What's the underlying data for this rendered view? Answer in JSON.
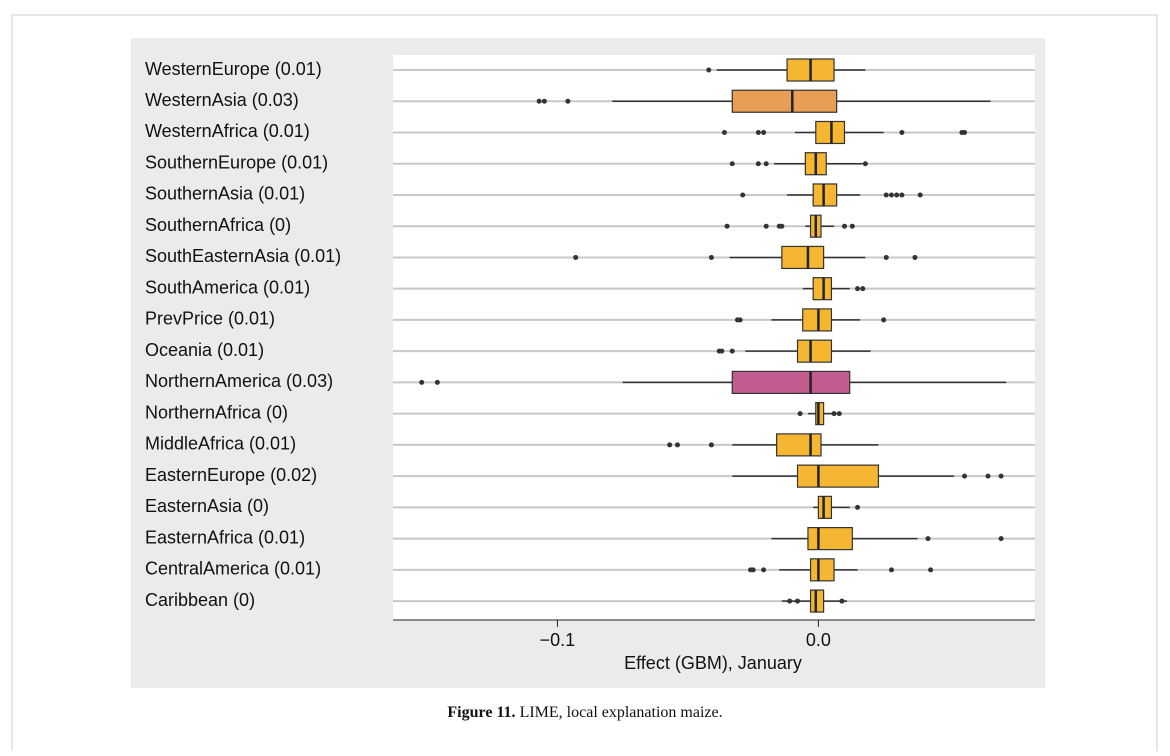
{
  "chart_data": {
    "type": "box",
    "categories": [
      "WesternEurope (0.01)",
      "WesternAsia (0.03)",
      "WesternAfrica (0.01)",
      "SouthernEurope (0.01)",
      "SouthernAsia (0.01)",
      "SouthernAfrica (0)",
      "SouthEasternAsia (0.01)",
      "SouthAmerica (0.01)",
      "PrevPrice (0.01)",
      "Oceania (0.01)",
      "NorthernAmerica (0.03)",
      "NorthernAfrica (0)",
      "MiddleAfrica (0.01)",
      "EasternEurope (0.02)",
      "EasternAsia (0)",
      "EasternAfrica (0.01)",
      "CentralAmerica (0.01)",
      "Caribbean (0)"
    ],
    "whisker_low": [
      -0.039,
      -0.079,
      -0.009,
      -0.017,
      -0.012,
      -0.005,
      -0.034,
      -0.006,
      -0.018,
      -0.028,
      -0.075,
      -0.004,
      -0.033,
      -0.033,
      -0.002,
      -0.018,
      -0.015,
      -0.014
    ],
    "q1": [
      -0.012,
      -0.033,
      -0.001,
      -0.005,
      -0.002,
      -0.003,
      -0.014,
      -0.002,
      -0.006,
      -0.008,
      -0.033,
      -0.001,
      -0.016,
      -0.008,
      0.0,
      -0.004,
      -0.003,
      -0.003
    ],
    "median": [
      -0.003,
      -0.01,
      0.005,
      -0.001,
      0.002,
      -0.001,
      -0.004,
      0.002,
      0.0,
      -0.003,
      -0.003,
      0.0,
      -0.003,
      0.0,
      0.002,
      0.0,
      0.0,
      -0.001
    ],
    "q3": [
      0.006,
      0.007,
      0.01,
      0.003,
      0.007,
      0.001,
      0.002,
      0.005,
      0.005,
      0.005,
      0.012,
      0.002,
      0.001,
      0.023,
      0.005,
      0.013,
      0.006,
      0.002
    ],
    "whisker_high": [
      0.018,
      0.066,
      0.025,
      0.017,
      0.016,
      0.006,
      0.018,
      0.012,
      0.016,
      0.02,
      0.072,
      0.007,
      0.023,
      0.052,
      0.012,
      0.038,
      0.015,
      0.011
    ],
    "outliers": [
      [
        -0.042
      ],
      [
        -0.107,
        -0.105,
        -0.096
      ],
      [
        -0.036,
        -0.023,
        -0.021,
        0.032,
        0.055,
        0.056
      ],
      [
        -0.033,
        -0.023,
        -0.02,
        0.018
      ],
      [
        -0.029,
        0.026,
        0.028,
        0.03,
        0.032,
        0.039
      ],
      [
        -0.035,
        -0.02,
        -0.015,
        -0.014,
        0.01,
        0.013
      ],
      [
        -0.093,
        -0.041,
        0.026,
        0.037
      ],
      [
        0.015,
        0.017
      ],
      [
        -0.031,
        -0.03,
        0.025
      ],
      [
        -0.038,
        -0.037,
        -0.033
      ],
      [
        -0.152,
        -0.146
      ],
      [
        -0.007,
        0.006,
        0.008
      ],
      [
        -0.057,
        -0.054,
        -0.041
      ],
      [
        0.056,
        0.065,
        0.07
      ],
      [
        0.015
      ],
      [
        0.042,
        0.07
      ],
      [
        -0.026,
        -0.025,
        -0.021,
        0.028,
        0.043
      ],
      [
        -0.011,
        -0.008,
        0.009
      ]
    ],
    "colors": [
      "#f5b731",
      "#e99e55",
      "#f5b731",
      "#f5b731",
      "#f5b731",
      "#f5b731",
      "#f5b731",
      "#f5b731",
      "#f5b731",
      "#f5b731",
      "#c25c8f",
      "#f5b731",
      "#f5b731",
      "#f5b731",
      "#f5b731",
      "#f5b731",
      "#f5b731",
      "#f5b731"
    ],
    "xlabel": "Effect (GBM), January",
    "xlim": [
      -0.163,
      0.083
    ],
    "xticks": [
      {
        "value": -0.1,
        "label": "−0.1"
      },
      {
        "value": 0.0,
        "label": "0.0"
      }
    ],
    "grid": true
  },
  "caption": {
    "label": "Figure 11.",
    "text": " LIME, local explanation maize."
  }
}
